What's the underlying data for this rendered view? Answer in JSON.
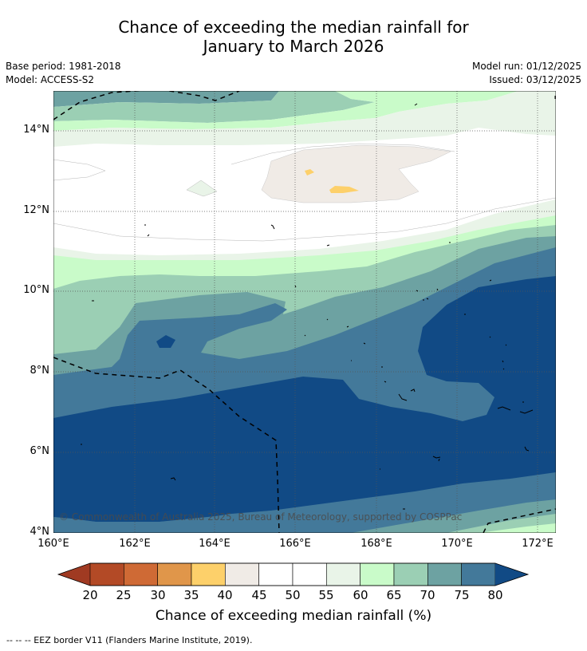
{
  "title": {
    "line1": "Chance of exceeding the median rainfall for",
    "line2": "January to March 2026"
  },
  "meta": {
    "base_period": "Base period: 1981-2018",
    "model": "Model: ACCESS-S2",
    "model_run": "Model run: 01/12/2025",
    "issued": "Issued: 03/12/2025"
  },
  "axes": {
    "y_labels": [
      "14°N",
      "12°N",
      "10°N",
      "8°N",
      "6°N",
      "4°N"
    ],
    "x_labels": [
      "160°E",
      "162°E",
      "164°E",
      "166°E",
      "168°E",
      "170°E",
      "172°E"
    ]
  },
  "copyright": "© Commonwealth of Australia 2025, Bureau of Meteorology, supported by COSPPac",
  "colorbar": {
    "labels": [
      "20",
      "25",
      "30",
      "35",
      "40",
      "45",
      "50",
      "55",
      "60",
      "65",
      "70",
      "75",
      "80"
    ],
    "title": "Chance of exceeding median rainfall (%)",
    "under_color": "#a03a22",
    "colors": [
      "#b34a26",
      "#cf6a35",
      "#e0964a",
      "#fdd06a",
      "#f0ebe6",
      "#ffffff",
      "#ffffff",
      "#e9f4e8",
      "#c9fbc9",
      "#9bcfb4",
      "#6da2a2",
      "#43799a"
    ],
    "over_color": "#114a85"
  },
  "footer": "--  --  -- EEZ border V11 (Flanders Marine Institute, 2019)."
}
